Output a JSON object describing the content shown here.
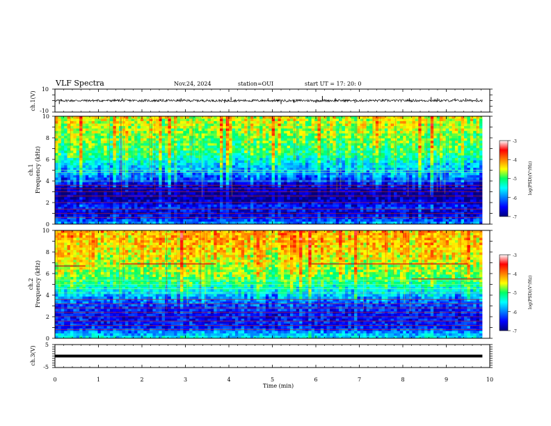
{
  "header": {
    "title": "VLF Spectra",
    "date": "Nov.24, 2024",
    "station": "station=OUI",
    "start": "start  UT =   17: 20: 0"
  },
  "chart_data": [
    {
      "id": "ch1-waveform",
      "type": "line",
      "ylabel": "ch.1(V)",
      "ylim": [
        -10,
        10
      ],
      "ytick_labels": [
        "-10",
        "10"
      ],
      "x_unit": "min",
      "xlim": [
        0,
        10
      ],
      "baseline": 0,
      "noise_level": 1,
      "spikes": [
        {
          "x": 0.1,
          "y": -3
        },
        {
          "x": 1.55,
          "y": 2
        },
        {
          "x": 2.9,
          "y": 2
        },
        {
          "x": 3.9,
          "y": -2
        },
        {
          "x": 4.05,
          "y": 3
        },
        {
          "x": 4.9,
          "y": 2
        },
        {
          "x": 5.2,
          "y": -3
        },
        {
          "x": 5.5,
          "y": -2
        },
        {
          "x": 6.0,
          "y": -2
        },
        {
          "x": 6.15,
          "y": 4
        },
        {
          "x": 6.45,
          "y": 2
        },
        {
          "x": 6.9,
          "y": -2
        },
        {
          "x": 8.15,
          "y": 2
        },
        {
          "x": 8.65,
          "y": 3
        },
        {
          "x": 8.8,
          "y": 2
        },
        {
          "x": 9.2,
          "y": 2
        },
        {
          "x": 9.45,
          "y": 2
        },
        {
          "x": 9.7,
          "y": 2
        }
      ],
      "data_end_min": 9.83
    },
    {
      "id": "ch1-spectrogram",
      "type": "heatmap",
      "ylabel_top": "ch.1",
      "ylabel": "Frequency (kHz)",
      "ylim": [
        0,
        10
      ],
      "ytick_labels": [
        "0",
        "2",
        "4",
        "6",
        "8",
        "10"
      ],
      "xlim": [
        0,
        10
      ],
      "data_end_min": 9.83,
      "profile": [
        {
          "f": 0,
          "v": -5.8
        },
        {
          "f": 0.4,
          "v": -6.3
        },
        {
          "f": 1.0,
          "v": -6.7
        },
        {
          "f": 1.5,
          "v": -6.4
        },
        {
          "f": 2.5,
          "v": -6.9
        },
        {
          "f": 3.5,
          "v": -6.7
        },
        {
          "f": 4.5,
          "v": -6.0
        },
        {
          "f": 5.5,
          "v": -5.6
        },
        {
          "f": 6.5,
          "v": -5.1
        },
        {
          "f": 8.0,
          "v": -4.8
        },
        {
          "f": 10.0,
          "v": -4.5
        }
      ],
      "lines_khz": [
        0.6,
        1.0,
        1.4,
        2.0,
        2.6,
        3.0,
        3.3,
        3.6,
        4.0,
        4.8,
        5.0
      ],
      "cbar_label": "log(PSD)(V²/Hz)",
      "cbar_range": [
        -7,
        -3
      ],
      "cbar_tick_labels": [
        "-7",
        "-6",
        "-5",
        "-4",
        "-3"
      ]
    },
    {
      "id": "ch2-spectrogram",
      "type": "heatmap",
      "ylabel_top": "ch.2",
      "ylabel": "Frequency (kHz)",
      "ylim": [
        0,
        10
      ],
      "ytick_labels": [
        "0",
        "2",
        "4",
        "6",
        "8",
        "10"
      ],
      "xlim": [
        0,
        10
      ],
      "data_end_min": 9.83,
      "profile": [
        {
          "f": 0,
          "v": -5.5
        },
        {
          "f": 0.5,
          "v": -5.9
        },
        {
          "f": 1.0,
          "v": -6.4
        },
        {
          "f": 2.0,
          "v": -6.5
        },
        {
          "f": 3.0,
          "v": -6.3
        },
        {
          "f": 4.0,
          "v": -5.8
        },
        {
          "f": 5.0,
          "v": -5.2
        },
        {
          "f": 6.0,
          "v": -4.8
        },
        {
          "f": 8.0,
          "v": -4.4
        },
        {
          "f": 10.0,
          "v": -4.2
        }
      ],
      "lines_khz": [
        0.8,
        1.2,
        1.6,
        2.0,
        2.4,
        2.8,
        3.2,
        3.6,
        4.2,
        4.6,
        5.0,
        5.4
      ],
      "red_lines": [
        {
          "x0": 0,
          "x1": 0.7,
          "f": 6.7
        },
        {
          "x0": 1.5,
          "x1": 3.7,
          "f": 6.9
        },
        {
          "x0": 5.9,
          "x1": 9.5,
          "f": 6.9
        },
        {
          "x0": 8.2,
          "x1": 9.8,
          "f": 5.5
        }
      ],
      "cbar_label": "log(PSD)(V²/Hz)",
      "cbar_range": [
        -7,
        -3
      ],
      "cbar_tick_labels": [
        "-7",
        "-6",
        "-5",
        "-4",
        "-3"
      ]
    },
    {
      "id": "ch3-waveform",
      "type": "line",
      "ylabel": "ch.3(V)",
      "ylim": [
        -5,
        5
      ],
      "ytick_labels": [
        "-5",
        "5"
      ],
      "xlim": [
        0,
        10
      ],
      "baseline": 0,
      "data_end_min": 9.83
    }
  ],
  "xaxis": {
    "label": "Time (min)",
    "ticks": [
      0,
      1,
      2,
      3,
      4,
      5,
      6,
      7,
      8,
      9,
      10
    ],
    "tick_labels": [
      "0",
      "1",
      "2",
      "3",
      "4",
      "5",
      "6",
      "7",
      "8",
      "9",
      "10"
    ]
  }
}
